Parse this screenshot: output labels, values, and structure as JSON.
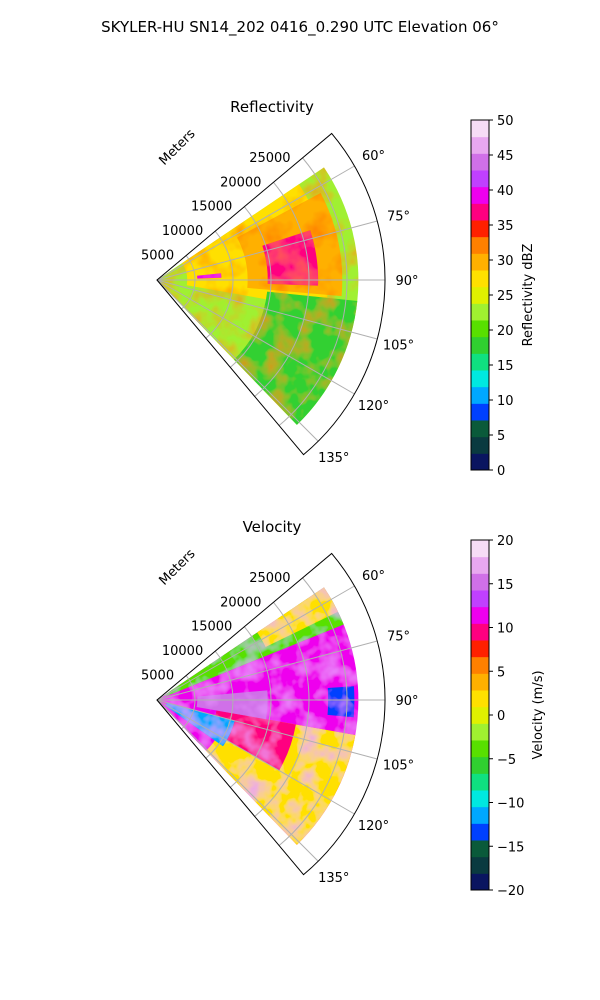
{
  "suptitle": "SKYLER-HU  SN14_202  0416_0.290 UTC Elevation 06°",
  "chart_data": [
    {
      "type": "heatmap",
      "projection": "polar-sector",
      "title": "Reflectivity",
      "range_axis_label": "Meters",
      "range_ticks": [
        "5000",
        "10000",
        "15000",
        "20000",
        "25000"
      ],
      "range_tick_values": [
        5000,
        10000,
        15000,
        20000,
        25000
      ],
      "range_max": 30000,
      "azimuth_range_deg": [
        50,
        140
      ],
      "azimuth_ticks": [
        "60°",
        "75°",
        "90°",
        "105°",
        "120°",
        "135°"
      ],
      "azimuth_tick_values": [
        60,
        75,
        90,
        105,
        120,
        135
      ],
      "grid": true,
      "field_data_extent": {
        "azimuth_deg": [
          56,
          136
        ],
        "range_m": [
          0,
          26500
        ]
      },
      "colorbar": {
        "label": "Reflectivity dBZ",
        "min": 0,
        "max": 50,
        "ticks": [
          "0",
          "5",
          "10",
          "15",
          "20",
          "25",
          "30",
          "35",
          "40",
          "45",
          "50"
        ],
        "tick_values": [
          0,
          5,
          10,
          15,
          20,
          25,
          30,
          35,
          40,
          45,
          50
        ],
        "colors": [
          "#0a1560",
          "#0a3a40",
          "#0a5a3a",
          "#0040ff",
          "#00a8ff",
          "#00e8e0",
          "#10e080",
          "#30d030",
          "#58e000",
          "#a0f030",
          "#e0f000",
          "#ffe000",
          "#ffb000",
          "#ff8000",
          "#ff2000",
          "#ff0080",
          "#ee00ee",
          "#c040ff",
          "#d070e8",
          "#e8a8f0",
          "#f6ddf6"
        ]
      },
      "dominant_values": {
        "typical_dBZ": [
          18,
          32
        ],
        "max_dBZ": 40
      }
    },
    {
      "type": "heatmap",
      "projection": "polar-sector",
      "title": "Velocity",
      "range_axis_label": "Meters",
      "range_ticks": [
        "5000",
        "10000",
        "15000",
        "20000",
        "25000"
      ],
      "range_tick_values": [
        5000,
        10000,
        15000,
        20000,
        25000
      ],
      "range_max": 30000,
      "azimuth_range_deg": [
        50,
        140
      ],
      "azimuth_ticks": [
        "60°",
        "75°",
        "90°",
        "105°",
        "120°",
        "135°"
      ],
      "azimuth_tick_values": [
        60,
        75,
        90,
        105,
        120,
        135
      ],
      "grid": true,
      "field_data_extent": {
        "azimuth_deg": [
          56,
          136
        ],
        "range_m": [
          0,
          26500
        ]
      },
      "colorbar": {
        "label": "Velocity (m/s)",
        "min": -20,
        "max": 20,
        "ticks": [
          "−20",
          "−15",
          "−10",
          "−5",
          "0",
          "5",
          "10",
          "15",
          "20"
        ],
        "tick_values": [
          -20,
          -15,
          -10,
          -5,
          0,
          5,
          10,
          15,
          20
        ],
        "colors": [
          "#0a1560",
          "#0a3a40",
          "#0a5a3a",
          "#0040ff",
          "#00a8ff",
          "#00e8e0",
          "#10e080",
          "#30d030",
          "#58e000",
          "#a0f030",
          "#e0f000",
          "#ffe000",
          "#ffb000",
          "#ff8000",
          "#ff2000",
          "#ff0080",
          "#ee00ee",
          "#c040ff",
          "#d070e8",
          "#e8a8f0",
          "#f6ddf6"
        ]
      },
      "dominant_values": {
        "typical_ms": [
          5,
          15
        ],
        "min_ms": -12
      }
    }
  ]
}
